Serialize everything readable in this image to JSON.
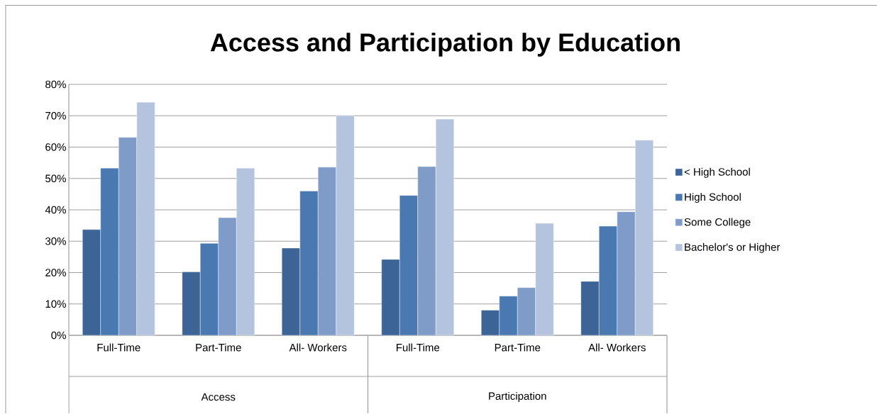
{
  "chart_data": {
    "type": "bar",
    "title": "Access and Participation by Education",
    "categories": [
      "Full-Time",
      "Part-Time",
      "All- Workers",
      "Full-Time",
      "Part-Time",
      "All- Workers"
    ],
    "annotations": [
      "Access",
      "Participation"
    ],
    "series": [
      {
        "name": "< High School",
        "color": "#3c6496",
        "values": [
          33.7,
          20.2,
          27.8,
          24.2,
          8.0,
          17.2
        ]
      },
      {
        "name": "High School",
        "color": "#4a78b0",
        "values": [
          53.3,
          29.3,
          46.0,
          44.6,
          12.5,
          34.8
        ]
      },
      {
        "name": "Some College",
        "color": "#7f9cc8",
        "values": [
          63.1,
          37.5,
          53.6,
          53.8,
          15.2,
          39.4
        ]
      },
      {
        "name": "Bachelor's or Higher",
        "color": "#b4c4de",
        "values": [
          74.3,
          53.3,
          70.0,
          68.9,
          35.7,
          62.2
        ]
      }
    ],
    "ylim": [
      0,
      80
    ],
    "yticks": [
      {
        "value": 0,
        "label": "0%"
      },
      {
        "value": 10,
        "label": "10%"
      },
      {
        "value": 20,
        "label": "20%"
      },
      {
        "value": 30,
        "label": "30%"
      },
      {
        "value": 40,
        "label": "40%"
      },
      {
        "value": 50,
        "label": "50%"
      },
      {
        "value": 60,
        "label": "60%"
      },
      {
        "value": 70,
        "label": "70%"
      },
      {
        "value": 80,
        "label": "80%"
      }
    ],
    "grid": "y",
    "legend": "right"
  }
}
